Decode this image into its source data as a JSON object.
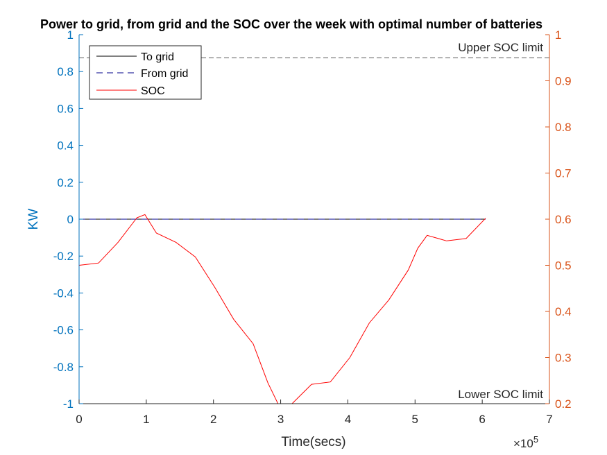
{
  "chart_data": {
    "type": "line",
    "title": "Power to grid, from grid and the SOC over the week with optimal number of batteries",
    "xlabel": "Time(secs)",
    "x_exponent_label": "×10",
    "x_exponent_power": "5",
    "ylabel_left": "KW",
    "ylabel_right": "",
    "xlim": [
      0,
      7
    ],
    "ylim_left": [
      -1,
      1
    ],
    "ylim_right": [
      0.2,
      1
    ],
    "x_ticks": [
      "0",
      "1",
      "2",
      "3",
      "4",
      "5",
      "6",
      "7"
    ],
    "y_left_ticks": [
      "-1",
      "-0.8",
      "-0.6",
      "-0.4",
      "-0.2",
      "0",
      "0.2",
      "0.4",
      "0.6",
      "0.8",
      "1"
    ],
    "y_right_ticks": [
      "0.2",
      "0.3",
      "0.4",
      "0.5",
      "0.6",
      "0.7",
      "0.8",
      "0.9",
      "1"
    ],
    "grid": false,
    "legend_position": "top-left",
    "annotations": {
      "upper_soc": "Upper SOC limit",
      "lower_soc": "Lower SOC limit"
    },
    "upper_soc_limit": 0.95,
    "series": [
      {
        "name": "To grid",
        "axis": "left",
        "style": "solid",
        "color": "#000000",
        "x": [
          0,
          6.05
        ],
        "y": [
          0,
          0
        ]
      },
      {
        "name": "From grid",
        "axis": "left",
        "style": "dashed",
        "color": "#00008B",
        "x": [
          0,
          6.05
        ],
        "y": [
          0,
          0
        ]
      },
      {
        "name": "SOC",
        "axis": "right",
        "style": "solid",
        "color": "#FF0000",
        "x": [
          0,
          0.29,
          0.58,
          0.86,
          0.98,
          1.15,
          1.44,
          1.73,
          2.02,
          2.3,
          2.59,
          2.81,
          2.96,
          3.17,
          3.46,
          3.74,
          4.03,
          4.32,
          4.61,
          4.9,
          5.04,
          5.18,
          5.47,
          5.76,
          6.05
        ],
        "y": [
          0.5,
          0.505,
          0.55,
          0.603,
          0.61,
          0.57,
          0.55,
          0.518,
          0.452,
          0.383,
          0.33,
          0.245,
          0.2,
          0.2,
          0.242,
          0.247,
          0.3,
          0.375,
          0.425,
          0.49,
          0.537,
          0.565,
          0.553,
          0.558,
          0.602
        ]
      }
    ]
  }
}
